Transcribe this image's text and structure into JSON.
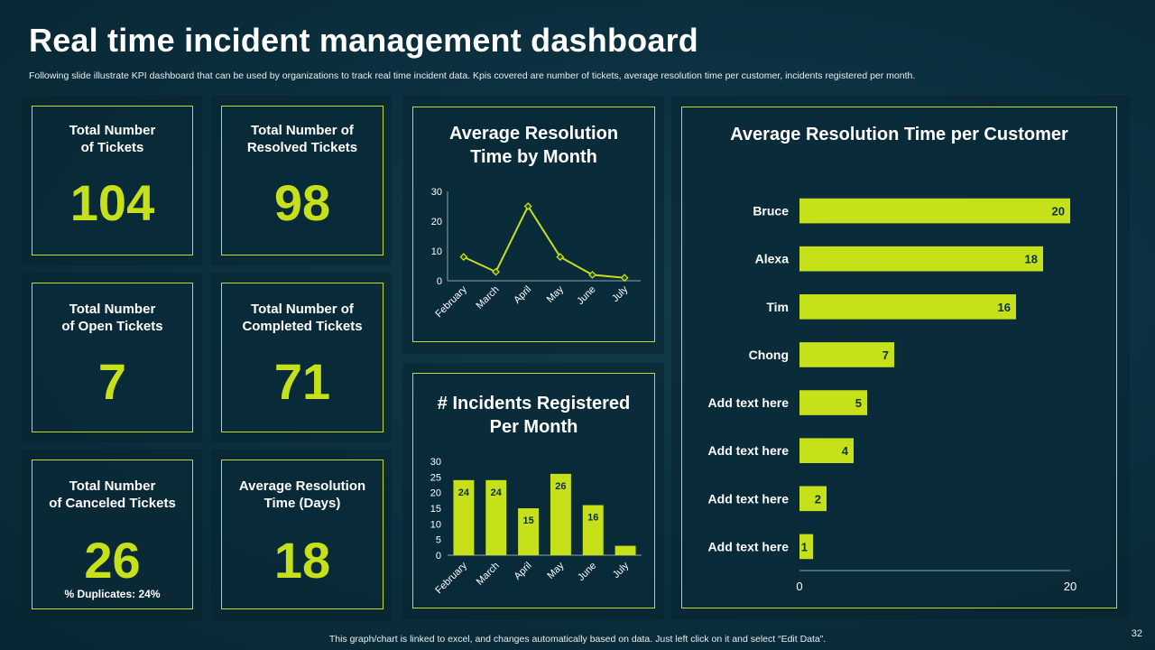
{
  "header": {
    "title": "Real time incident management dashboard",
    "subtitle": "Following slide illustrate KPI dashboard that can be used by organizations to track real time incident data. Kpis covered are number of tickets, average resolution time per customer, incidents registered per month."
  },
  "kpis": [
    {
      "label": "Total Number\nof Tickets",
      "value": "104"
    },
    {
      "label": "Total Number of\nResolved Tickets",
      "value": "98"
    },
    {
      "label": "Total Number\nof Open Tickets",
      "value": "7"
    },
    {
      "label": "Total Number of\nCompleted Tickets",
      "value": "71"
    },
    {
      "label": "Total Number\nof Canceled Tickets",
      "value": "26",
      "note": "% Duplicates: 24%"
    },
    {
      "label": "Average Resolution\nTime (Days)",
      "value": "18"
    }
  ],
  "footer": {
    "note": "This graph/chart is linked to excel, and changes automatically based on data. Just left click on it and select “Edit Data”.",
    "page_number": "32"
  },
  "colors": {
    "accent": "#c6e11a",
    "border": "#c6d92c",
    "background": "#0c3140"
  },
  "chart_data": [
    {
      "type": "line",
      "title": "Average Resolution\nTime by Month",
      "categories": [
        "February",
        "March",
        "April",
        "May",
        "June",
        "July"
      ],
      "values": [
        8,
        3,
        25,
        8,
        2,
        1
      ],
      "yticks": [
        "0",
        "10",
        "20",
        "30"
      ],
      "ylim": [
        0,
        30
      ]
    },
    {
      "type": "bar",
      "title": "# Incidents Registered\nPer Month",
      "categories": [
        "February",
        "March",
        "April",
        "May",
        "June",
        "July"
      ],
      "values": [
        24,
        24,
        15,
        26,
        16,
        3
      ],
      "data_labels": [
        "24",
        "24",
        "15",
        "26",
        "16",
        ""
      ],
      "yticks": [
        "0",
        "5",
        "10",
        "15",
        "20",
        "25",
        "30"
      ],
      "ylim": [
        0,
        30
      ]
    },
    {
      "type": "bar",
      "orientation": "horizontal",
      "title": "Average Resolution Time per Customer",
      "categories": [
        "Bruce",
        "Alexa",
        "Tim",
        "Chong",
        "Add text here",
        "Add text here",
        "Add text here",
        "Add text here"
      ],
      "values": [
        20,
        18,
        16,
        7,
        5,
        4,
        2,
        1
      ],
      "xticks": [
        "0",
        "20"
      ],
      "xlim": [
        0,
        20
      ]
    }
  ]
}
